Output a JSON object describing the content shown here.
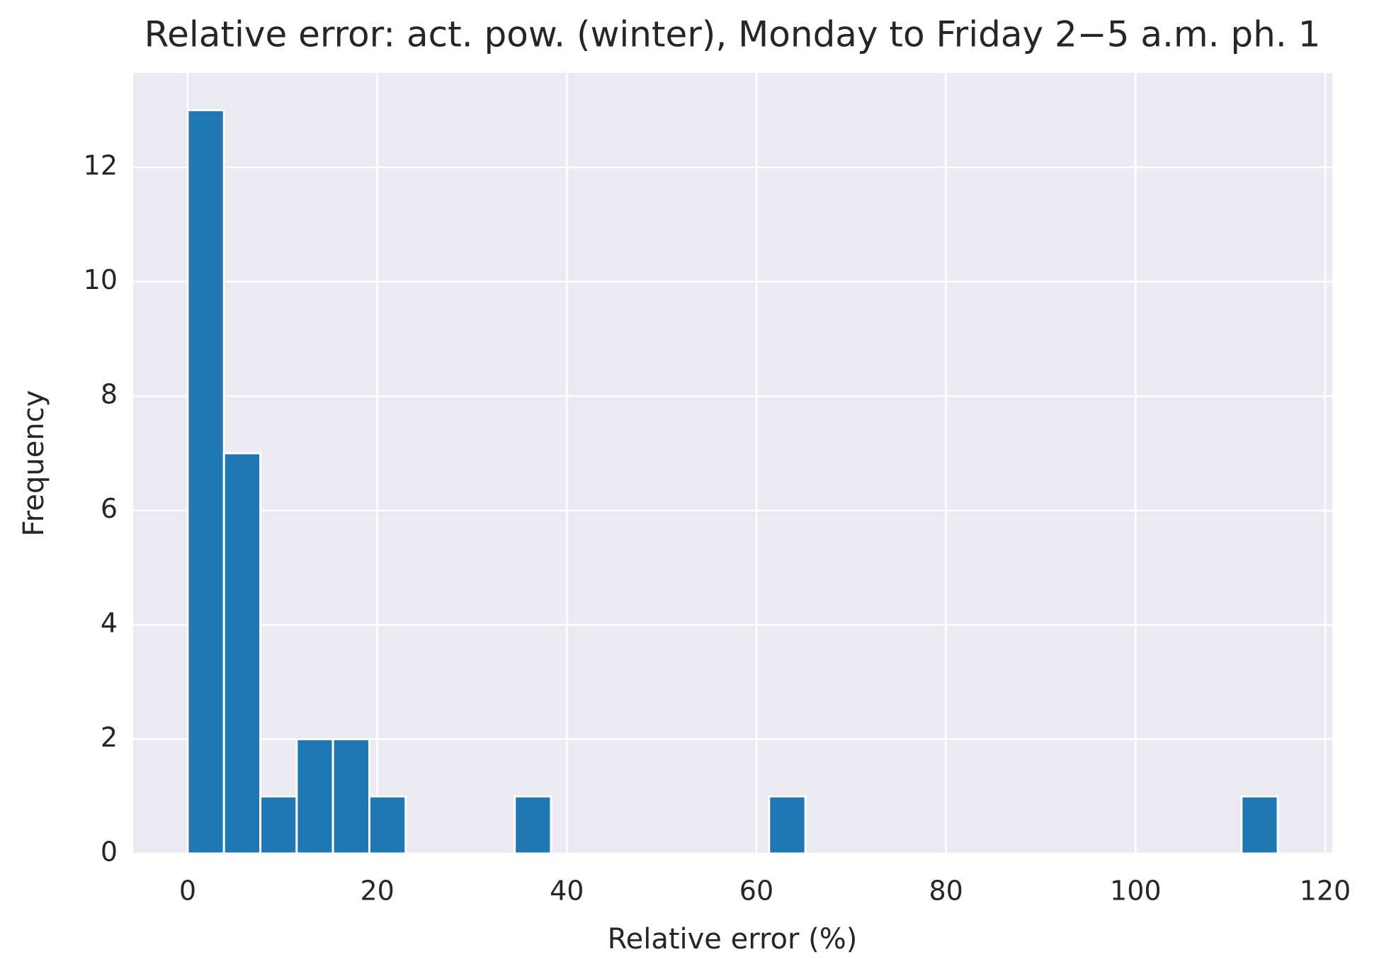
{
  "chart_data": {
    "type": "histogram",
    "title": "Relative error: act. pow. (winter), Monday to Friday 2−5 a.m. ph. 1",
    "x_label": "Relative error (%)",
    "y_label": "Frequency",
    "bins": [
      0,
      3.83,
      7.67,
      11.5,
      15.33,
      19.17,
      23,
      26.83,
      30.67,
      34.5,
      38.33,
      42.17,
      46,
      49.83,
      53.67,
      57.5,
      61.33,
      65.17,
      69,
      72.83,
      76.67,
      80.5,
      84.33,
      88.17,
      92,
      95.83,
      99.67,
      103.5,
      107.33,
      111.17,
      115
    ],
    "values": [
      13,
      7,
      1,
      2,
      2,
      1,
      0,
      0,
      0,
      1,
      0,
      0,
      0,
      0,
      0,
      0,
      1,
      0,
      0,
      0,
      0,
      0,
      0,
      0,
      0,
      0,
      0,
      0,
      0,
      1
    ],
    "color": "#1f77b4",
    "xlim": [
      -5.75,
      120.75
    ],
    "xticks": [
      0,
      20,
      40,
      60,
      80,
      100,
      120
    ],
    "ylim": [
      0,
      13.65
    ],
    "yticks": [
      0,
      2,
      4,
      6,
      8,
      10,
      12
    ],
    "grid": true
  }
}
